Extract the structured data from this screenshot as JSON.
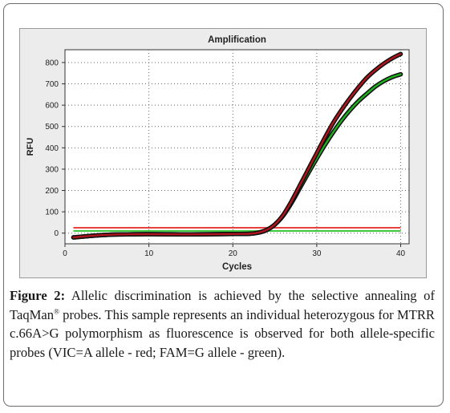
{
  "chart_data": {
    "type": "line",
    "title": "Amplification",
    "xlabel": "Cycles",
    "ylabel": "RFU",
    "xlim": [
      0,
      41
    ],
    "ylim": [
      -50,
      860
    ],
    "xticks": [
      0,
      10,
      20,
      30,
      40
    ],
    "yticks": [
      0,
      100,
      200,
      300,
      400,
      500,
      600,
      700,
      800
    ],
    "grid": "dotted",
    "series": [
      {
        "color": "#b0141c",
        "x": [
          1,
          5,
          10,
          15,
          20,
          22,
          23,
          24,
          25,
          26,
          27,
          28,
          29,
          30,
          31,
          32,
          33,
          34,
          35,
          36,
          37,
          38,
          39,
          40
        ],
        "y": [
          -20,
          -8,
          -5,
          -6,
          -4,
          -3,
          2,
          14,
          40,
          85,
          150,
          225,
          300,
          375,
          450,
          520,
          580,
          635,
          685,
          730,
          765,
          795,
          820,
          840
        ]
      },
      {
        "color": "#1fb01f",
        "x": [
          1,
          5,
          10,
          15,
          20,
          22,
          23,
          24,
          25,
          26,
          27,
          28,
          29,
          30,
          31,
          32,
          33,
          34,
          35,
          36,
          37,
          38,
          39,
          40
        ],
        "y": [
          -20,
          -8,
          -5,
          -6,
          -4,
          -3,
          2,
          14,
          40,
          82,
          142,
          212,
          282,
          350,
          415,
          475,
          530,
          578,
          620,
          655,
          688,
          713,
          732,
          745
        ]
      }
    ],
    "threshold_lines": [
      {
        "color": "#e8403f",
        "y": 25
      },
      {
        "color": "#3cc83c",
        "y": 10
      }
    ],
    "colors": {
      "vic_red": "#b0141c",
      "fam_green": "#1fb01f",
      "background": "#ececec"
    }
  },
  "caption": {
    "label": "Figure 2:",
    "text_before_sup": " Allelic discrimination is achieved by the selective annealing of TaqMan",
    "sup": "®",
    "text_after_sup": " probes. This sample represents an individual heterozygous for MTRR c.66A>G polymorphism as fluorescence is observed for both allele-specific probes (VIC=A allele - red; FAM=G allele - green)."
  }
}
